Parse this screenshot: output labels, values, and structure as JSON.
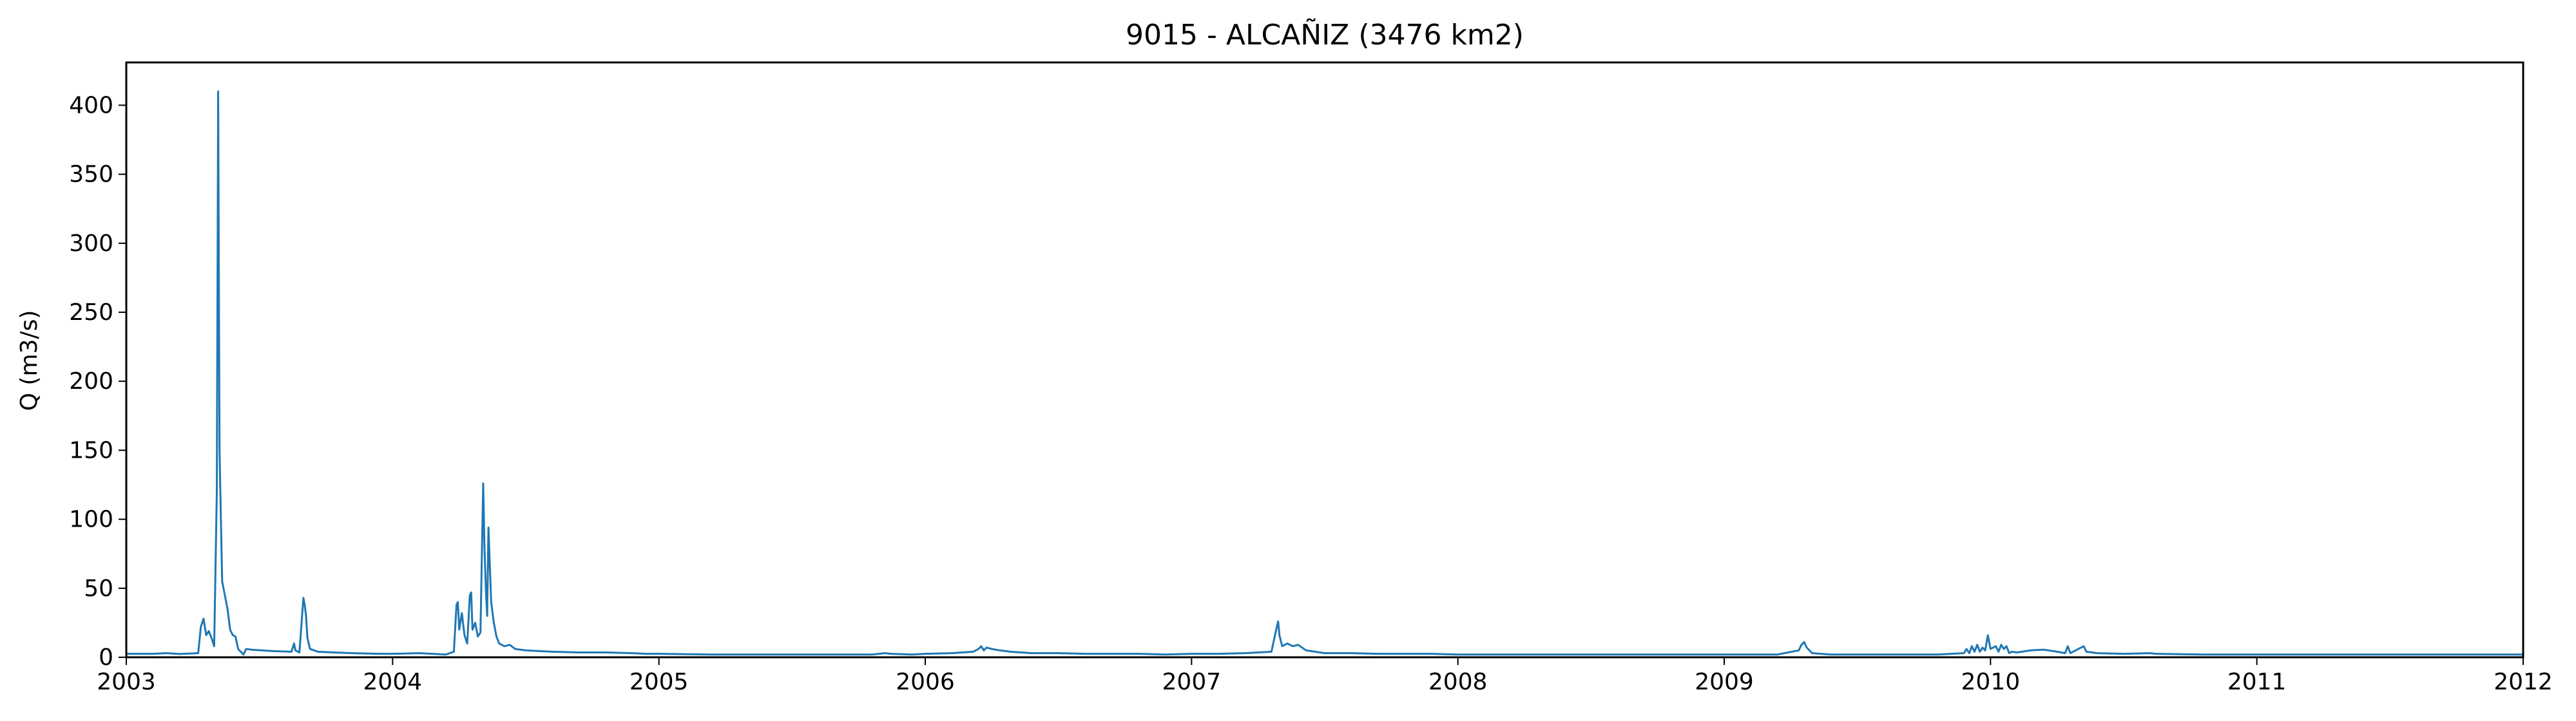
{
  "chart_data": {
    "type": "line",
    "title": "9015 - ALCAÑIZ (3476 km2)",
    "xlabel": "",
    "ylabel": "Q (m3/s)",
    "xlim": [
      2003.0,
      2012.0
    ],
    "ylim": [
      0,
      431
    ],
    "grid": false,
    "legend": "none",
    "x_ticks": [
      "2003",
      "2004",
      "2005",
      "2006",
      "2007",
      "2008",
      "2009",
      "2010",
      "2011",
      "2012"
    ],
    "y_ticks": [
      "0",
      "50",
      "100",
      "150",
      "200",
      "250",
      "300",
      "350",
      "400"
    ],
    "series": [
      {
        "color": "#1f77b4",
        "points": [
          [
            2003.0,
            2.5
          ],
          [
            2003.1,
            2.5
          ],
          [
            2003.15,
            3.0
          ],
          [
            2003.2,
            2.4
          ],
          [
            2003.27,
            3.0
          ],
          [
            2003.28,
            22
          ],
          [
            2003.29,
            28
          ],
          [
            2003.3,
            16
          ],
          [
            2003.31,
            19
          ],
          [
            2003.32,
            14
          ],
          [
            2003.33,
            8
          ],
          [
            2003.34,
            120
          ],
          [
            2003.345,
            410
          ],
          [
            2003.35,
            150
          ],
          [
            2003.36,
            55
          ],
          [
            2003.38,
            35
          ],
          [
            2003.39,
            20
          ],
          [
            2003.4,
            16
          ],
          [
            2003.41,
            15
          ],
          [
            2003.42,
            6
          ],
          [
            2003.43,
            4
          ],
          [
            2003.44,
            2
          ],
          [
            2003.45,
            6
          ],
          [
            2003.47,
            5.5
          ],
          [
            2003.55,
            4.5
          ],
          [
            2003.62,
            4
          ],
          [
            2003.63,
            10
          ],
          [
            2003.635,
            5
          ],
          [
            2003.65,
            3.5
          ],
          [
            2003.66,
            30
          ],
          [
            2003.665,
            43
          ],
          [
            2003.67,
            38
          ],
          [
            2003.675,
            30
          ],
          [
            2003.68,
            14
          ],
          [
            2003.69,
            6
          ],
          [
            2003.72,
            4
          ],
          [
            2003.78,
            3.5
          ],
          [
            2003.85,
            3
          ],
          [
            2003.95,
            2.5
          ],
          [
            2004.0,
            2.5
          ],
          [
            2004.1,
            3
          ],
          [
            2004.15,
            2.5
          ],
          [
            2004.2,
            2
          ],
          [
            2004.23,
            4
          ],
          [
            2004.24,
            38
          ],
          [
            2004.245,
            40
          ],
          [
            2004.25,
            20
          ],
          [
            2004.26,
            32
          ],
          [
            2004.27,
            16
          ],
          [
            2004.28,
            10
          ],
          [
            2004.29,
            45
          ],
          [
            2004.295,
            47
          ],
          [
            2004.3,
            20
          ],
          [
            2004.31,
            25
          ],
          [
            2004.32,
            15
          ],
          [
            2004.33,
            18
          ],
          [
            2004.34,
            126
          ],
          [
            2004.345,
            80
          ],
          [
            2004.35,
            50
          ],
          [
            2004.355,
            30
          ],
          [
            2004.36,
            94
          ],
          [
            2004.37,
            40
          ],
          [
            2004.38,
            25
          ],
          [
            2004.39,
            15
          ],
          [
            2004.4,
            10
          ],
          [
            2004.42,
            8
          ],
          [
            2004.44,
            9
          ],
          [
            2004.46,
            6
          ],
          [
            2004.5,
            5
          ],
          [
            2004.55,
            4.5
          ],
          [
            2004.6,
            4
          ],
          [
            2004.7,
            3.5
          ],
          [
            2004.8,
            3.5
          ],
          [
            2004.9,
            3
          ],
          [
            2004.95,
            2.5
          ],
          [
            2005.0,
            2.5
          ],
          [
            2005.2,
            2
          ],
          [
            2005.4,
            2
          ],
          [
            2005.6,
            2
          ],
          [
            2005.8,
            2
          ],
          [
            2005.85,
            3
          ],
          [
            2005.87,
            2.5
          ],
          [
            2005.95,
            2
          ],
          [
            2006.0,
            2.5
          ],
          [
            2006.1,
            3
          ],
          [
            2006.18,
            4
          ],
          [
            2006.2,
            6
          ],
          [
            2006.21,
            8
          ],
          [
            2006.22,
            5
          ],
          [
            2006.23,
            7
          ],
          [
            2006.25,
            6
          ],
          [
            2006.28,
            5
          ],
          [
            2006.32,
            4
          ],
          [
            2006.4,
            3
          ],
          [
            2006.5,
            3
          ],
          [
            2006.6,
            2.5
          ],
          [
            2006.7,
            2.5
          ],
          [
            2006.8,
            2.5
          ],
          [
            2006.9,
            2
          ],
          [
            2007.0,
            2.5
          ],
          [
            2007.1,
            2.5
          ],
          [
            2007.2,
            3
          ],
          [
            2007.3,
            4
          ],
          [
            2007.32,
            22
          ],
          [
            2007.325,
            26
          ],
          [
            2007.33,
            16
          ],
          [
            2007.34,
            8
          ],
          [
            2007.36,
            10
          ],
          [
            2007.38,
            8
          ],
          [
            2007.4,
            9
          ],
          [
            2007.43,
            5
          ],
          [
            2007.5,
            3
          ],
          [
            2007.6,
            3
          ],
          [
            2007.7,
            2.5
          ],
          [
            2007.8,
            2.5
          ],
          [
            2007.9,
            2.5
          ],
          [
            2008.0,
            2
          ],
          [
            2008.2,
            2
          ],
          [
            2008.4,
            2
          ],
          [
            2008.6,
            2
          ],
          [
            2008.8,
            2
          ],
          [
            2009.0,
            2
          ],
          [
            2009.1,
            2
          ],
          [
            2009.2,
            2
          ],
          [
            2009.28,
            5
          ],
          [
            2009.29,
            9
          ],
          [
            2009.3,
            11
          ],
          [
            2009.31,
            7
          ],
          [
            2009.33,
            3
          ],
          [
            2009.4,
            2
          ],
          [
            2009.6,
            2
          ],
          [
            2009.8,
            2
          ],
          [
            2009.9,
            3
          ],
          [
            2009.91,
            6
          ],
          [
            2009.92,
            3
          ],
          [
            2009.93,
            8
          ],
          [
            2009.94,
            4
          ],
          [
            2009.95,
            9
          ],
          [
            2009.96,
            4
          ],
          [
            2009.97,
            7
          ],
          [
            2009.98,
            5
          ],
          [
            2009.99,
            16
          ],
          [
            2010.0,
            6
          ],
          [
            2010.02,
            8
          ],
          [
            2010.03,
            4
          ],
          [
            2010.04,
            9
          ],
          [
            2010.05,
            6
          ],
          [
            2010.06,
            8
          ],
          [
            2010.07,
            3
          ],
          [
            2010.08,
            4
          ],
          [
            2010.1,
            3.5
          ],
          [
            2010.15,
            5
          ],
          [
            2010.2,
            5.5
          ],
          [
            2010.25,
            4
          ],
          [
            2010.28,
            3
          ],
          [
            2010.29,
            8
          ],
          [
            2010.3,
            3
          ],
          [
            2010.33,
            6
          ],
          [
            2010.35,
            8
          ],
          [
            2010.36,
            4
          ],
          [
            2010.4,
            3
          ],
          [
            2010.5,
            2.5
          ],
          [
            2010.6,
            3
          ],
          [
            2010.62,
            2.5
          ],
          [
            2010.8,
            2
          ],
          [
            2011.0,
            2
          ],
          [
            2011.2,
            2
          ],
          [
            2011.4,
            2
          ],
          [
            2011.6,
            2
          ],
          [
            2011.8,
            2
          ],
          [
            2012.0,
            2
          ]
        ]
      }
    ]
  }
}
